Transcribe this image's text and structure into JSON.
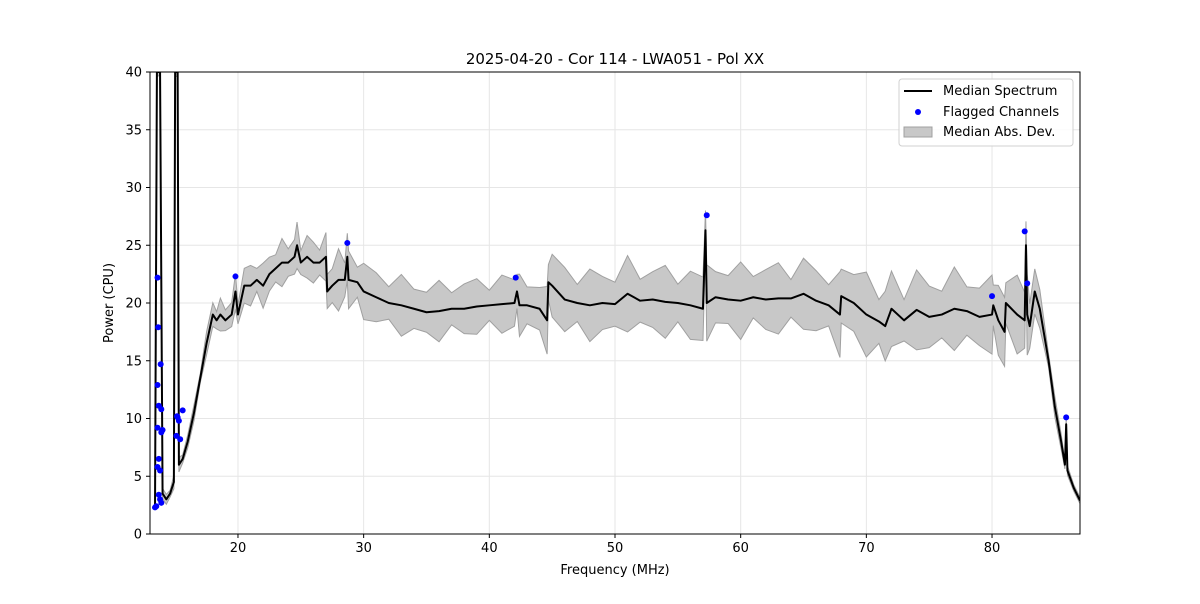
{
  "chart_data": {
    "type": "line",
    "title": "2025-04-20 - Cor 114 - LWA051 - Pol XX",
    "xlabel": "Frequency (MHz)",
    "ylabel": "Power (CPU)",
    "xlim": [
      13,
      87
    ],
    "ylim": [
      0,
      40
    ],
    "xticks": [
      20,
      30,
      40,
      50,
      60,
      70,
      80
    ],
    "yticks": [
      0,
      5,
      10,
      15,
      20,
      25,
      30,
      35,
      40
    ],
    "grid": true,
    "legend": {
      "placement": "top-right",
      "entries": [
        "Median Spectrum",
        "Flagged Channels",
        "Median Abs. Dev."
      ]
    },
    "colors": {
      "median": "#000000",
      "flagged": "#0000ff",
      "mad_fill": "#c8c8c8",
      "mad_edge": "#a0a0a0"
    },
    "series": [
      {
        "name": "Median Spectrum",
        "points": [
          [
            13.4,
            2.5
          ],
          [
            13.55,
            40
          ],
          [
            13.8,
            40
          ],
          [
            14.0,
            3.5
          ],
          [
            14.3,
            3.0
          ],
          [
            14.6,
            3.5
          ],
          [
            14.9,
            4.5
          ],
          [
            15.0,
            40
          ],
          [
            15.2,
            40
          ],
          [
            15.3,
            6
          ],
          [
            15.6,
            6.5
          ],
          [
            16,
            8
          ],
          [
            16.5,
            10.5
          ],
          [
            17,
            13.5
          ],
          [
            17.5,
            16.5
          ],
          [
            18,
            19
          ],
          [
            18.3,
            18.5
          ],
          [
            18.6,
            19
          ],
          [
            19,
            18.5
          ],
          [
            19.5,
            19
          ],
          [
            19.8,
            21
          ],
          [
            20,
            19
          ],
          [
            20.5,
            21.5
          ],
          [
            21,
            21.5
          ],
          [
            21.5,
            22
          ],
          [
            22,
            21.5
          ],
          [
            22.5,
            22.5
          ],
          [
            23,
            23
          ],
          [
            23.5,
            23.5
          ],
          [
            24,
            23.5
          ],
          [
            24.5,
            24
          ],
          [
            24.7,
            25
          ],
          [
            25,
            23.5
          ],
          [
            25.5,
            24
          ],
          [
            26,
            23.5
          ],
          [
            26.5,
            23.5
          ],
          [
            27,
            24
          ],
          [
            27.1,
            21
          ],
          [
            27.5,
            21.5
          ],
          [
            28,
            22
          ],
          [
            28.5,
            22
          ],
          [
            28.7,
            24
          ],
          [
            28.8,
            22
          ],
          [
            29.5,
            21.8
          ],
          [
            30,
            21
          ],
          [
            31,
            20.5
          ],
          [
            32,
            20
          ],
          [
            33,
            19.8
          ],
          [
            34,
            19.5
          ],
          [
            35,
            19.2
          ],
          [
            36,
            19.3
          ],
          [
            37,
            19.5
          ],
          [
            38,
            19.5
          ],
          [
            39,
            19.7
          ],
          [
            40,
            19.8
          ],
          [
            41,
            19.9
          ],
          [
            42,
            20
          ],
          [
            42.2,
            21
          ],
          [
            42.4,
            19.8
          ],
          [
            43,
            19.8
          ],
          [
            44,
            19.5
          ],
          [
            44.6,
            18.5
          ],
          [
            44.7,
            21.8
          ],
          [
            45,
            21.5
          ],
          [
            46,
            20.3
          ],
          [
            47,
            20
          ],
          [
            48,
            19.8
          ],
          [
            49,
            20
          ],
          [
            50,
            19.9
          ],
          [
            51,
            20.8
          ],
          [
            52,
            20.2
          ],
          [
            53,
            20.3
          ],
          [
            54,
            20.1
          ],
          [
            55,
            20
          ],
          [
            56,
            19.8
          ],
          [
            57.0,
            19.5
          ],
          [
            57.2,
            26.3
          ],
          [
            57.3,
            20
          ],
          [
            58,
            20.5
          ],
          [
            59,
            20.3
          ],
          [
            60,
            20.2
          ],
          [
            61,
            20.5
          ],
          [
            62,
            20.3
          ],
          [
            63,
            20.4
          ],
          [
            64,
            20.4
          ],
          [
            65,
            20.8
          ],
          [
            66,
            20.2
          ],
          [
            67,
            19.8
          ],
          [
            67.9,
            19
          ],
          [
            68,
            20.6
          ],
          [
            69,
            20
          ],
          [
            70,
            19
          ],
          [
            71,
            18.4
          ],
          [
            71.5,
            18
          ],
          [
            72,
            19.5
          ],
          [
            73,
            18.5
          ],
          [
            74,
            19.4
          ],
          [
            75,
            18.8
          ],
          [
            76,
            19
          ],
          [
            77,
            19.5
          ],
          [
            78,
            19.3
          ],
          [
            79,
            18.8
          ],
          [
            80,
            19
          ],
          [
            80.1,
            19.8
          ],
          [
            80.5,
            18.5
          ],
          [
            81,
            17.5
          ],
          [
            81.1,
            20
          ],
          [
            82,
            19
          ],
          [
            82.6,
            18.5
          ],
          [
            82.7,
            25
          ],
          [
            82.8,
            19
          ],
          [
            83,
            18
          ],
          [
            83.4,
            21
          ],
          [
            83.8,
            19.5
          ],
          [
            84.5,
            15
          ],
          [
            85,
            11
          ],
          [
            85.5,
            8
          ],
          [
            85.8,
            6
          ],
          [
            85.9,
            9.5
          ],
          [
            86,
            5.5
          ],
          [
            86.5,
            4
          ],
          [
            87,
            2.9
          ]
        ]
      },
      {
        "name": "Flagged Channels",
        "points": [
          [
            13.4,
            2.3
          ],
          [
            13.5,
            2.4
          ],
          [
            13.6,
            22.2
          ],
          [
            13.65,
            17.9
          ],
          [
            13.85,
            14.7
          ],
          [
            13.6,
            12.9
          ],
          [
            13.7,
            11.1
          ],
          [
            13.9,
            10.8
          ],
          [
            13.6,
            9.2
          ],
          [
            14.0,
            9.0
          ],
          [
            13.9,
            8.8
          ],
          [
            13.7,
            6.5
          ],
          [
            13.6,
            5.8
          ],
          [
            13.8,
            5.5
          ],
          [
            13.7,
            3.4
          ],
          [
            13.8,
            3.0
          ],
          [
            13.9,
            2.7
          ],
          [
            15.15,
            10.2
          ],
          [
            15.3,
            9.8
          ],
          [
            15.2,
            10.1
          ],
          [
            15.1,
            8.5
          ],
          [
            15.4,
            8.2
          ],
          [
            15.6,
            10.7
          ],
          [
            19.8,
            22.3
          ],
          [
            28.7,
            25.2
          ],
          [
            42.1,
            22.2
          ],
          [
            57.3,
            27.6
          ],
          [
            80.0,
            20.6
          ],
          [
            82.6,
            26.2
          ],
          [
            82.8,
            21.7
          ],
          [
            85.9,
            10.1
          ]
        ]
      },
      {
        "name": "Median Abs. Dev.",
        "half_width": [
          [
            13,
            0.3
          ],
          [
            17,
            0.6
          ],
          [
            18,
            1.0
          ],
          [
            20,
            1.2
          ],
          [
            21,
            1.5
          ],
          [
            27,
            1.6
          ],
          [
            28,
            2.0
          ],
          [
            44,
            2.0
          ],
          [
            45,
            2.4
          ],
          [
            57,
            2.5
          ],
          [
            67,
            2.5
          ],
          [
            68,
            2.8
          ],
          [
            83,
            2.6
          ],
          [
            84,
            1.0
          ],
          [
            87,
            0.2
          ]
        ]
      }
    ]
  }
}
